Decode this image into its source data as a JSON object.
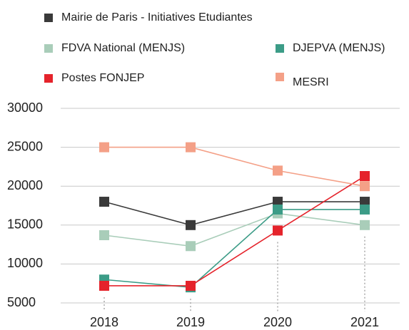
{
  "chart_data": {
    "type": "line",
    "categories": [
      "2018",
      "2019",
      "2020",
      "2021"
    ],
    "series": [
      {
        "name": "Mairie de Paris - Initiatives Etudiantes",
        "color": "#3a3a3a",
        "values": [
          18000,
          15000,
          18000,
          18000
        ]
      },
      {
        "name": "FDVA National (MENJS)",
        "color": "#a9cdb9",
        "values": [
          13700,
          12300,
          16500,
          15000
        ]
      },
      {
        "name": "DJEPVA (MENJS)",
        "color": "#3c9c87",
        "values": [
          8000,
          7000,
          17000,
          17000
        ]
      },
      {
        "name": "Postes FONJEP",
        "color": "#e5232b",
        "values": [
          7200,
          7200,
          14300,
          21300
        ]
      },
      {
        "name": "MESRI",
        "color": "#f4a087",
        "values": [
          25000,
          25000,
          22000,
          20000
        ]
      }
    ],
    "ylim": [
      5000,
      30000
    ],
    "yticks": [
      5000,
      10000,
      15000,
      20000,
      25000,
      30000
    ],
    "grid": true
  }
}
